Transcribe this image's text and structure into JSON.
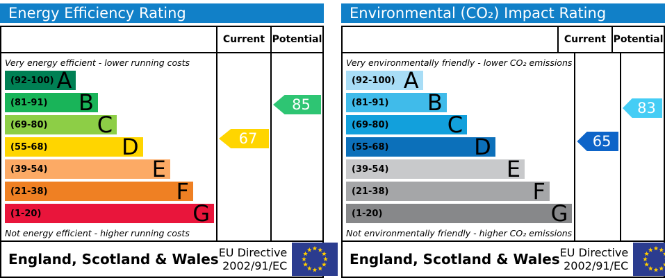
{
  "ui": {
    "columns": {
      "current": "Current",
      "potential": "Potential"
    },
    "footer": {
      "region": "England, Scotland & Wales",
      "directive_line1": "EU Directive",
      "directive_line2": "2002/91/EC",
      "flag_icon": "eu-flag"
    },
    "colors": {
      "header_bar": "#1180c8",
      "flag_field": "#2b3c8f",
      "flag_stars": "#ffcc00",
      "border": "#000000"
    }
  },
  "chart_data": [
    {
      "type": "bar",
      "variant": "epc-rating-bands",
      "title": "Energy Efficiency Rating",
      "top_caption": "Very energy efficient - lower running costs",
      "bottom_caption": "Not energy efficient - higher running costs",
      "bands": [
        {
          "letter": "A",
          "range": "(92-100)",
          "min": 92,
          "max": 100,
          "color": "#008054",
          "width_pct": 34
        },
        {
          "letter": "B",
          "range": "(81-91)",
          "min": 81,
          "max": 91,
          "color": "#19b459",
          "width_pct": 44.5
        },
        {
          "letter": "C",
          "range": "(69-80)",
          "min": 69,
          "max": 80,
          "color": "#8dce46",
          "width_pct": 53.5
        },
        {
          "letter": "D",
          "range": "(55-68)",
          "min": 55,
          "max": 68,
          "color": "#ffd500",
          "width_pct": 66
        },
        {
          "letter": "E",
          "range": "(39-54)",
          "min": 39,
          "max": 54,
          "color": "#fcaa65",
          "width_pct": 79
        },
        {
          "letter": "F",
          "range": "(21-38)",
          "min": 21,
          "max": 38,
          "color": "#ef8023",
          "width_pct": 90
        },
        {
          "letter": "G",
          "range": "(1-20)",
          "min": 1,
          "max": 20,
          "color": "#e9153b",
          "width_pct": 100
        }
      ],
      "current": {
        "value": 67,
        "band": "D",
        "color": "#ffd500"
      },
      "potential": {
        "value": 85,
        "band": "B",
        "color": "#2ec573"
      }
    },
    {
      "type": "bar",
      "variant": "epc-rating-bands",
      "title": "Environmental (CO₂) Impact Rating",
      "top_caption": "Very environmentally friendly - lower CO₂ emissions",
      "bottom_caption": "Not environmentally friendly - higher CO₂ emissions",
      "bands": [
        {
          "letter": "A",
          "range": "(92-100)",
          "min": 92,
          "max": 100,
          "color": "#a8ddf6",
          "width_pct": 34
        },
        {
          "letter": "B",
          "range": "(81-91)",
          "min": 81,
          "max": 91,
          "color": "#40bbea",
          "width_pct": 44.5
        },
        {
          "letter": "C",
          "range": "(69-80)",
          "min": 69,
          "max": 80,
          "color": "#12a0dc",
          "width_pct": 53.5
        },
        {
          "letter": "D",
          "range": "(55-68)",
          "min": 55,
          "max": 68,
          "color": "#0c70ba",
          "width_pct": 66
        },
        {
          "letter": "E",
          "range": "(39-54)",
          "min": 39,
          "max": 54,
          "color": "#c8c9cb",
          "width_pct": 79
        },
        {
          "letter": "F",
          "range": "(21-38)",
          "min": 21,
          "max": 38,
          "color": "#a5a6a8",
          "width_pct": 90
        },
        {
          "letter": "G",
          "range": "(1-20)",
          "min": 1,
          "max": 20,
          "color": "#87888a",
          "width_pct": 100
        }
      ],
      "current": {
        "value": 65,
        "band": "D",
        "color": "#0d64c8"
      },
      "potential": {
        "value": 83,
        "band": "B",
        "color": "#45cdf5"
      }
    }
  ]
}
